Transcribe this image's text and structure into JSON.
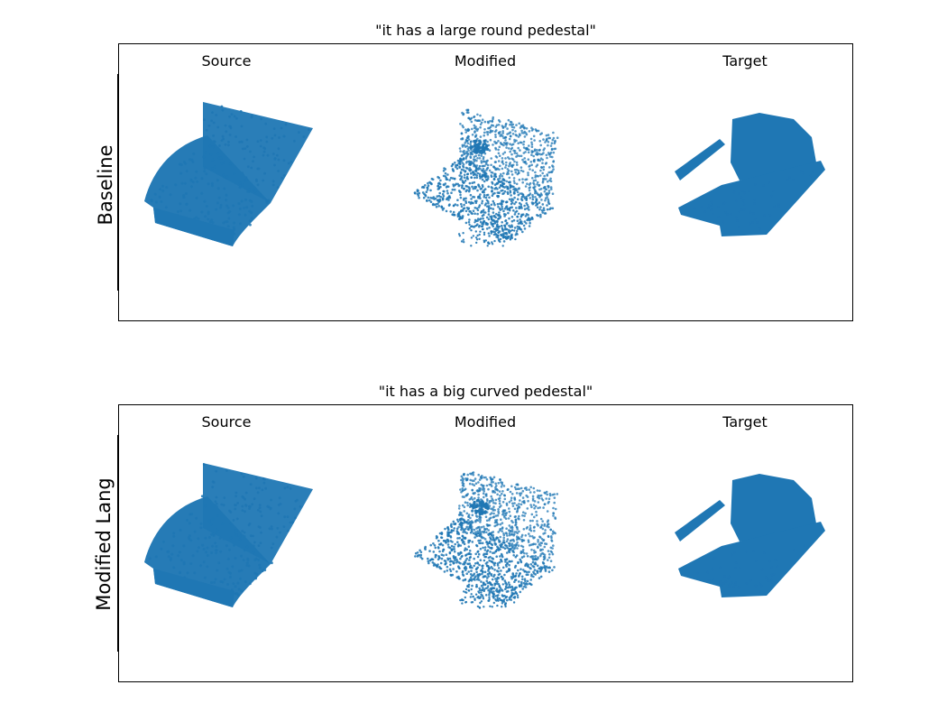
{
  "figure": {
    "rows": [
      {
        "label": "Baseline",
        "title": "\"it has a large round pedestal\"",
        "columns": [
          "Source",
          "Modified",
          "Target"
        ]
      },
      {
        "label": "Modified Lang",
        "title": "\"it has a big curved pedestal\"",
        "columns": [
          "Source",
          "Modified",
          "Target"
        ]
      }
    ],
    "point_color": "#1f77b4"
  }
}
